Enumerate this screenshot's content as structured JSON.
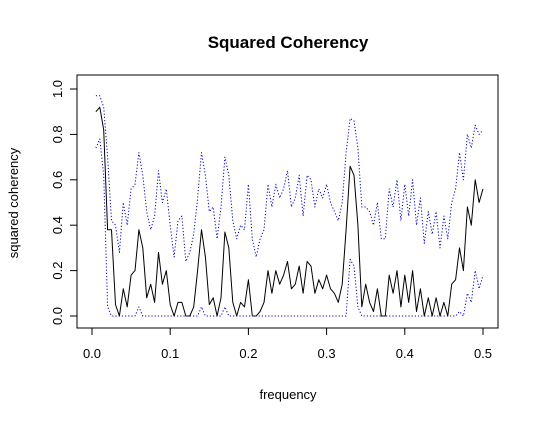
{
  "chart_data": {
    "type": "line",
    "title": "Squared Coherency",
    "xlabel": "frequency",
    "ylabel": "squared coherency",
    "xlim": [
      0,
      0.5
    ],
    "ylim": [
      0,
      1
    ],
    "xticks": [
      "0.0",
      "0.1",
      "0.2",
      "0.3",
      "0.4",
      "0.5"
    ],
    "yticks": [
      "0.0",
      "0.2",
      "0.4",
      "0.6",
      "0.8",
      "1.0"
    ],
    "grid": false,
    "legend": "none",
    "x": [
      0.005,
      0.01,
      0.015,
      0.02,
      0.025,
      0.03,
      0.035,
      0.04,
      0.045,
      0.05,
      0.055,
      0.06,
      0.065,
      0.07,
      0.075,
      0.08,
      0.085,
      0.09,
      0.095,
      0.1,
      0.105,
      0.11,
      0.115,
      0.12,
      0.125,
      0.13,
      0.135,
      0.14,
      0.145,
      0.15,
      0.155,
      0.16,
      0.165,
      0.17,
      0.175,
      0.18,
      0.185,
      0.19,
      0.195,
      0.2,
      0.205,
      0.21,
      0.215,
      0.22,
      0.225,
      0.23,
      0.235,
      0.24,
      0.245,
      0.25,
      0.255,
      0.26,
      0.265,
      0.27,
      0.275,
      0.28,
      0.285,
      0.29,
      0.295,
      0.3,
      0.305,
      0.31,
      0.315,
      0.32,
      0.325,
      0.33,
      0.335,
      0.34,
      0.345,
      0.35,
      0.355,
      0.36,
      0.365,
      0.37,
      0.375,
      0.38,
      0.385,
      0.39,
      0.395,
      0.4,
      0.405,
      0.41,
      0.415,
      0.42,
      0.425,
      0.43,
      0.435,
      0.44,
      0.445,
      0.45,
      0.455,
      0.46,
      0.465,
      0.47,
      0.475,
      0.48,
      0.485,
      0.49,
      0.495,
      0.5
    ],
    "series": [
      {
        "color": "#000000",
        "style": "solid",
        "values": [
          0.9,
          0.92,
          0.82,
          0.38,
          0.38,
          0.05,
          0.0,
          0.12,
          0.04,
          0.18,
          0.2,
          0.38,
          0.3,
          0.08,
          0.14,
          0.06,
          0.28,
          0.14,
          0.2,
          0.05,
          0.0,
          0.06,
          0.06,
          0.0,
          0.0,
          0.04,
          0.2,
          0.38,
          0.26,
          0.05,
          0.08,
          0.0,
          0.08,
          0.37,
          0.3,
          0.06,
          0.0,
          0.06,
          0.04,
          0.16,
          0.0,
          0.0,
          0.02,
          0.06,
          0.2,
          0.1,
          0.2,
          0.14,
          0.18,
          0.24,
          0.12,
          0.14,
          0.22,
          0.1,
          0.24,
          0.22,
          0.1,
          0.16,
          0.12,
          0.18,
          0.12,
          0.1,
          0.06,
          0.14,
          0.38,
          0.66,
          0.62,
          0.4,
          0.04,
          0.14,
          0.06,
          0.02,
          0.12,
          0.0,
          0.0,
          0.18,
          0.1,
          0.2,
          0.04,
          0.18,
          0.06,
          0.2,
          0.02,
          0.12,
          0.0,
          0.08,
          0.0,
          0.08,
          0.0,
          0.06,
          0.0,
          0.14,
          0.16,
          0.3,
          0.2,
          0.48,
          0.4,
          0.6,
          0.5,
          0.56
        ]
      },
      {
        "color": "#0000cc",
        "style": "dotted",
        "values": [
          0.97,
          0.97,
          0.92,
          0.7,
          0.42,
          0.4,
          0.28,
          0.5,
          0.4,
          0.56,
          0.58,
          0.72,
          0.62,
          0.46,
          0.38,
          0.44,
          0.64,
          0.5,
          0.56,
          0.4,
          0.26,
          0.42,
          0.44,
          0.24,
          0.28,
          0.36,
          0.52,
          0.72,
          0.62,
          0.46,
          0.48,
          0.34,
          0.48,
          0.7,
          0.62,
          0.42,
          0.34,
          0.4,
          0.38,
          0.58,
          0.34,
          0.26,
          0.34,
          0.38,
          0.58,
          0.48,
          0.58,
          0.52,
          0.56,
          0.64,
          0.48,
          0.52,
          0.62,
          0.44,
          0.62,
          0.6,
          0.48,
          0.56,
          0.52,
          0.58,
          0.5,
          0.46,
          0.42,
          0.5,
          0.72,
          0.87,
          0.86,
          0.74,
          0.48,
          0.48,
          0.46,
          0.4,
          0.5,
          0.34,
          0.34,
          0.56,
          0.48,
          0.6,
          0.42,
          0.58,
          0.44,
          0.6,
          0.4,
          0.52,
          0.32,
          0.46,
          0.36,
          0.46,
          0.3,
          0.44,
          0.34,
          0.5,
          0.56,
          0.72,
          0.6,
          0.8,
          0.74,
          0.84,
          0.8,
          0.82
        ]
      },
      {
        "color": "#0000cc",
        "style": "dotted",
        "values": [
          0.74,
          0.78,
          0.62,
          0.04,
          0.0,
          0.0,
          0.0,
          0.0,
          0.0,
          0.0,
          0.0,
          0.04,
          0.0,
          0.0,
          0.0,
          0.0,
          0.0,
          0.0,
          0.0,
          0.0,
          0.0,
          0.0,
          0.0,
          0.0,
          0.0,
          0.0,
          0.0,
          0.04,
          0.0,
          0.0,
          0.0,
          0.0,
          0.0,
          0.04,
          0.0,
          0.0,
          0.0,
          0.0,
          0.0,
          0.0,
          0.0,
          0.0,
          0.0,
          0.0,
          0.0,
          0.0,
          0.0,
          0.0,
          0.0,
          0.0,
          0.0,
          0.0,
          0.0,
          0.0,
          0.0,
          0.0,
          0.0,
          0.0,
          0.0,
          0.0,
          0.0,
          0.0,
          0.0,
          0.0,
          0.0,
          0.25,
          0.22,
          0.04,
          0.0,
          0.0,
          0.0,
          0.0,
          0.0,
          0.0,
          0.0,
          0.0,
          0.0,
          0.0,
          0.0,
          0.0,
          0.0,
          0.0,
          0.0,
          0.0,
          0.0,
          0.0,
          0.0,
          0.0,
          0.0,
          0.0,
          0.0,
          0.0,
          0.0,
          0.02,
          0.0,
          0.1,
          0.06,
          0.2,
          0.12,
          0.18
        ]
      }
    ]
  }
}
